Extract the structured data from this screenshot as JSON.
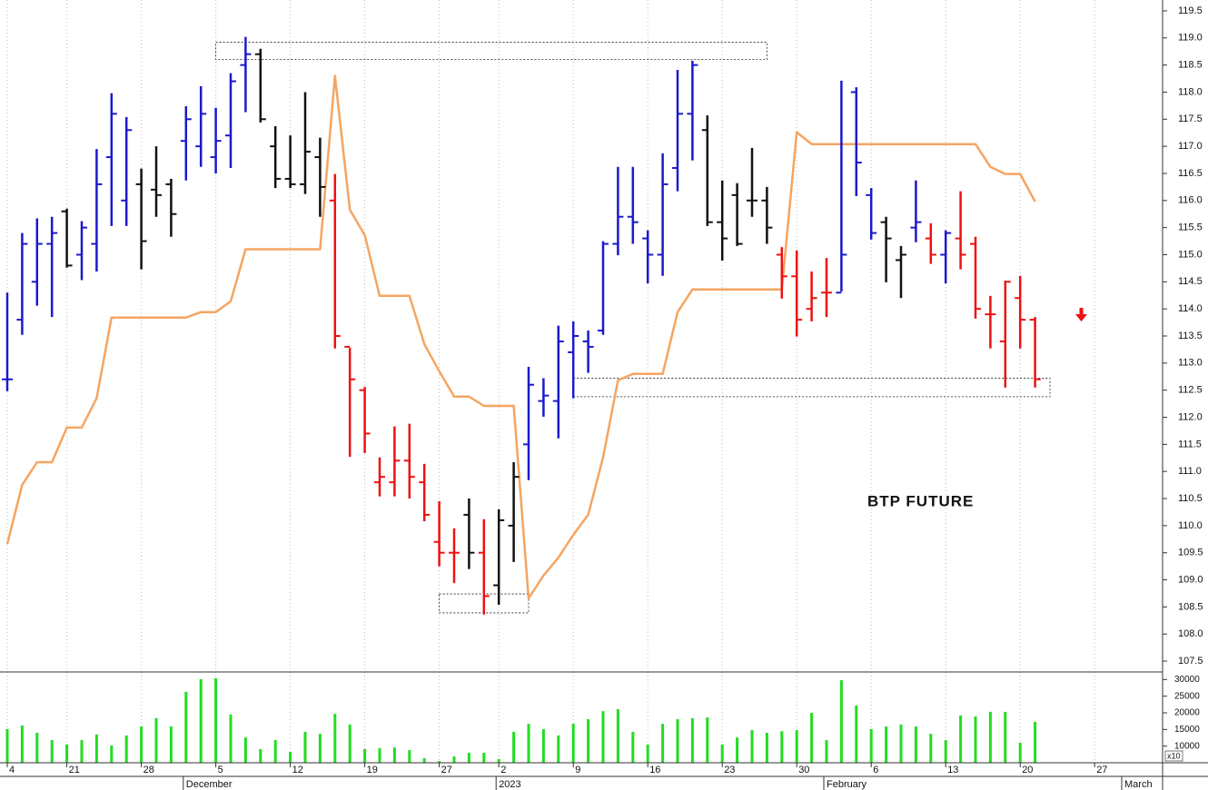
{
  "chart_data": {
    "type": "ohlc",
    "annotation": "BTP FUTURE",
    "categories": [
      "4",
      null,
      null,
      null,
      "21",
      null,
      null,
      null,
      null,
      "28",
      null,
      null,
      null,
      null,
      "5",
      null,
      null,
      null,
      null,
      "12",
      null,
      null,
      null,
      null,
      "19",
      null,
      null,
      null,
      null,
      "27",
      null,
      null,
      null,
      "2",
      null,
      null,
      null,
      null,
      "9",
      null,
      null,
      null,
      null,
      "16",
      null,
      null,
      null,
      null,
      "23",
      null,
      null,
      null,
      null,
      "30",
      null,
      null,
      null,
      null,
      "6",
      null,
      null,
      null,
      null,
      "13",
      null,
      null,
      null,
      null,
      "20",
      null,
      null,
      null,
      null,
      "27",
      null,
      null,
      null
    ],
    "month_labels": [
      null,
      null,
      null,
      null,
      null,
      null,
      null,
      null,
      null,
      null,
      null,
      null,
      "December",
      null,
      null,
      null,
      null,
      null,
      null,
      null,
      null,
      null,
      null,
      null,
      null,
      null,
      null,
      null,
      null,
      null,
      null,
      null,
      null,
      "2023",
      null,
      null,
      null,
      null,
      null,
      null,
      null,
      null,
      null,
      null,
      null,
      null,
      null,
      null,
      null,
      null,
      null,
      null,
      null,
      null,
      null,
      "February",
      null,
      null,
      null,
      null,
      null,
      null,
      null,
      null,
      null,
      null,
      null,
      null,
      null,
      null,
      null,
      null,
      null,
      null,
      null,
      "March",
      null
    ],
    "open": [
      112.7,
      113.8,
      114.5,
      115.2,
      115.8,
      115.0,
      115.2,
      116.8,
      116.0,
      116.3,
      116.2,
      116.3,
      117.1,
      117.0,
      116.8,
      117.2,
      118.5,
      118.7,
      117.0,
      116.4,
      116.3,
      116.8,
      116.0,
      113.3,
      112.5,
      110.8,
      110.8,
      111.2,
      110.8,
      109.7,
      109.5,
      110.2,
      109.5,
      108.9,
      110.0,
      111.5,
      112.3,
      112.3,
      113.2,
      113.4,
      113.6,
      115.2,
      115.7,
      115.3,
      115.0,
      116.6,
      117.6,
      117.3,
      115.6,
      116.1,
      116.0,
      116.0,
      115.0,
      114.6,
      114.0,
      114.3,
      114.3,
      118.0,
      116.1,
      115.6,
      114.9,
      115.5,
      115.3,
      115.0,
      115.3,
      115.2,
      113.9,
      113.4,
      114.2,
      113.8,
      null,
      null,
      null,
      null,
      null,
      null,
      null
    ],
    "high": [
      114.3,
      115.4,
      115.67,
      115.7,
      115.85,
      115.62,
      116.95,
      117.98,
      117.54,
      116.59,
      117.0,
      116.4,
      117.74,
      118.11,
      117.71,
      118.35,
      119.02,
      118.8,
      117.37,
      117.2,
      118.0,
      117.16,
      116.49,
      113.28,
      112.56,
      111.26,
      111.83,
      111.88,
      111.14,
      110.45,
      109.95,
      110.5,
      110.12,
      110.3,
      111.17,
      112.93,
      112.72,
      113.69,
      113.77,
      113.6,
      115.25,
      116.62,
      116.62,
      115.45,
      116.87,
      118.41,
      118.58,
      117.57,
      116.37,
      116.32,
      116.97,
      116.25,
      115.14,
      115.08,
      114.69,
      114.94,
      118.21,
      118.09,
      116.23,
      115.7,
      115.16,
      116.37,
      115.58,
      115.45,
      116.17,
      115.33,
      114.24,
      114.52,
      114.61,
      113.85,
      null,
      null,
      null,
      null,
      null,
      null,
      null
    ],
    "low": [
      112.48,
      113.52,
      114.06,
      113.85,
      114.76,
      114.53,
      114.69,
      115.53,
      115.53,
      114.73,
      115.7,
      115.33,
      116.37,
      116.62,
      116.5,
      116.6,
      117.63,
      117.44,
      116.23,
      116.23,
      116.12,
      115.7,
      113.27,
      111.27,
      111.34,
      110.54,
      110.54,
      110.5,
      110.08,
      109.25,
      108.94,
      109.2,
      108.36,
      108.54,
      109.33,
      110.84,
      112.01,
      111.61,
      112.35,
      112.82,
      113.52,
      114.99,
      115.2,
      114.47,
      114.61,
      116.17,
      116.74,
      115.53,
      114.89,
      115.16,
      115.7,
      115.2,
      114.19,
      113.49,
      113.77,
      113.85,
      114.32,
      116.08,
      115.28,
      114.49,
      114.2,
      115.23,
      114.83,
      114.47,
      114.73,
      113.82,
      113.27,
      112.55,
      113.27,
      112.55,
      null,
      null,
      null,
      null,
      null,
      null,
      null
    ],
    "close": [
      112.7,
      115.2,
      115.2,
      115.4,
      114.8,
      115.5,
      116.3,
      117.6,
      117.3,
      115.25,
      116.1,
      115.75,
      117.5,
      117.6,
      117.1,
      118.2,
      118.7,
      117.5,
      116.4,
      116.3,
      116.9,
      116.25,
      113.5,
      112.7,
      111.7,
      110.9,
      111.2,
      110.9,
      110.2,
      109.5,
      109.5,
      109.5,
      108.7,
      110.1,
      110.9,
      112.6,
      112.4,
      113.4,
      113.5,
      113.3,
      115.2,
      115.7,
      115.6,
      115.0,
      116.3,
      117.6,
      118.5,
      115.6,
      115.3,
      115.2,
      116.0,
      115.5,
      114.6,
      113.8,
      114.2,
      114.3,
      115.0,
      116.7,
      115.4,
      115.3,
      115.0,
      115.6,
      115.0,
      115.4,
      115.0,
      114.0,
      113.9,
      114.5,
      113.8,
      112.7,
      null,
      null,
      null,
      null,
      null,
      null,
      null
    ],
    "bar_colors": [
      "#1a1acc",
      "#1a1acc",
      "#1a1acc",
      "#1a1acc",
      "#111111",
      "#1a1acc",
      "#1a1acc",
      "#1a1acc",
      "#1a1acc",
      "#111111",
      "#111111",
      "#111111",
      "#1a1acc",
      "#1a1acc",
      "#1a1acc",
      "#1a1acc",
      "#1a1acc",
      "#111111",
      "#111111",
      "#111111",
      "#111111",
      "#111111",
      "#ee1111",
      "#ee1111",
      "#ee1111",
      "#ee1111",
      "#ee1111",
      "#ee1111",
      "#ee1111",
      "#ee1111",
      "#ee1111",
      "#111111",
      "#ee1111",
      "#111111",
      "#111111",
      "#1a1acc",
      "#1a1acc",
      "#1a1acc",
      "#1a1acc",
      "#1a1acc",
      "#1a1acc",
      "#1a1acc",
      "#1a1acc",
      "#1a1acc",
      "#1a1acc",
      "#1a1acc",
      "#1a1acc",
      "#111111",
      "#111111",
      "#111111",
      "#111111",
      "#111111",
      "#ee1111",
      "#ee1111",
      "#ee1111",
      "#ee1111",
      "#1a1acc",
      "#1a1acc",
      "#1a1acc",
      "#111111",
      "#111111",
      "#1a1acc",
      "#ee1111",
      "#1a1acc",
      "#ee1111",
      "#ee1111",
      "#ee1111",
      "#ee1111",
      "#ee1111",
      "#ee1111",
      null,
      null,
      null,
      null,
      null,
      null,
      null
    ],
    "line": {
      "color": "#f5a561",
      "values": [
        109.66,
        110.75,
        111.17,
        111.17,
        111.81,
        111.81,
        112.35,
        113.84,
        113.84,
        113.84,
        113.84,
        113.84,
        113.84,
        113.94,
        113.94,
        114.14,
        115.1,
        115.1,
        115.1,
        115.1,
        115.1,
        115.1,
        118.3,
        115.83,
        115.36,
        114.24,
        114.24,
        114.24,
        113.35,
        112.85,
        112.38,
        112.38,
        112.21,
        112.21,
        112.21,
        108.66,
        109.08,
        109.41,
        109.83,
        110.2,
        111.26,
        112.68,
        112.8,
        112.8,
        112.8,
        113.94,
        114.36,
        114.36,
        114.36,
        114.36,
        114.36,
        114.36,
        114.36,
        117.26,
        117.04,
        117.04,
        117.04,
        117.04,
        117.04,
        117.04,
        117.04,
        117.04,
        117.04,
        117.04,
        117.04,
        117.04,
        116.62,
        116.49,
        116.49,
        115.98,
        null,
        null,
        null,
        null,
        null,
        null,
        null
      ]
    },
    "zones": [
      {
        "start": 14,
        "end": 51,
        "low": 118.6,
        "high": 118.92
      },
      {
        "start": 29,
        "end": 35,
        "low": 108.39,
        "high": 108.74
      },
      {
        "start": 38,
        "end": 70,
        "low": 112.38,
        "high": 112.72
      }
    ],
    "ylim": [
      107.3,
      119.7
    ],
    "yticks": [
      107.5,
      {
        "value": 108,
        "label": "108.0"
      },
      108.5,
      {
        "value": 109,
        "label": "109.0"
      },
      109.5,
      {
        "value": 110,
        "label": "110.0"
      },
      110.5,
      {
        "value": 111,
        "label": "111.0"
      },
      111.5,
      {
        "value": 112,
        "label": "112.0"
      },
      112.5,
      {
        "value": 113,
        "label": "113.0"
      },
      113.5,
      {
        "value": 114,
        "label": "114.0"
      },
      114.5,
      {
        "value": 115,
        "label": "115.0"
      },
      115.5,
      {
        "value": 116,
        "label": "116.0"
      },
      116.5,
      {
        "value": 117,
        "label": "117.0"
      },
      117.5,
      {
        "value": 118,
        "label": "118.0"
      },
      118.5,
      {
        "value": 119,
        "label": "119.0"
      },
      119.5
    ],
    "volume": {
      "type": "bar",
      "color": "#22dd22",
      "scale_label": "x10",
      "values": [
        15100,
        16200,
        14000,
        11800,
        10500,
        11800,
        13500,
        10200,
        13200,
        15900,
        18400,
        15900,
        26300,
        30100,
        30400,
        19500,
        12600,
        9100,
        11800,
        8300,
        14300,
        13700,
        19700,
        16500,
        9100,
        9400,
        9600,
        8800,
        6400,
        5500,
        6900,
        8000,
        8000,
        6100,
        14300,
        16700,
        15100,
        13200,
        16700,
        18100,
        20500,
        21100,
        14300,
        10500,
        16700,
        18100,
        18400,
        18600,
        10500,
        12600,
        14800,
        14000,
        14500,
        14800,
        20000,
        11800,
        29800,
        22200,
        15100,
        15900,
        16500,
        15900,
        13700,
        11800,
        19200,
        18900,
        20300,
        20300,
        11000,
        17300,
        null,
        null,
        null,
        null,
        null,
        null,
        null
      ],
      "ylim": [
        5000,
        32000
      ],
      "yticks": [
        10000,
        15000,
        20000,
        25000,
        30000
      ]
    }
  }
}
